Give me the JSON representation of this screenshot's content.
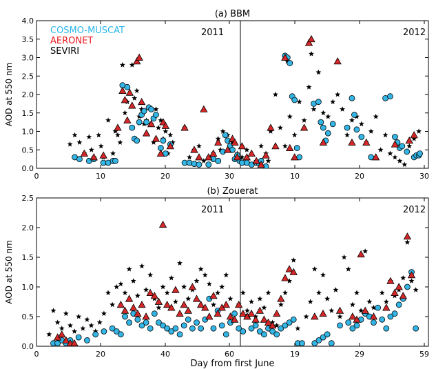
{
  "figure": {
    "xlabel": "Day from first June",
    "legend": [
      {
        "label": "COSMO-MUSCAT",
        "color": "#29b6e8"
      },
      {
        "label": "AERONET",
        "color": "#e8161b"
      },
      {
        "label": "SEVIRI",
        "color": "#000000"
      }
    ],
    "colors": {
      "model_fill": "#33b5e5",
      "aeronet_fill": "#d62728",
      "seviri_fill": "#000000"
    }
  },
  "chart_data": [
    {
      "type": "scatter",
      "title": "(a) BBM",
      "ylabel": "AOD at 550 nm",
      "ylim": [
        0,
        4.0
      ],
      "yticks": [
        "0.0",
        "0.5",
        "1.0",
        "1.5",
        "2.0",
        "2.5",
        "3.0",
        "3.5",
        "4.0"
      ],
      "xticks": [
        "0",
        "10",
        "20",
        "30",
        "10",
        "20",
        "30"
      ],
      "grid": false,
      "legend_position": "top-left",
      "year_labels": [
        "2011",
        "2012"
      ],
      "divider_after_day": 30,
      "x_axis": "continuous day index; 0-30 = June 2011, 30-60 = June 2012 (June days 0-30)",
      "series": [
        {
          "name": "COSMO-MUSCAT",
          "marker": "circle",
          "x": [
            8,
            9,
            11,
            12,
            14,
            15,
            16,
            16.5,
            18,
            19,
            20,
            20.5,
            21,
            21.5,
            22,
            22.5,
            23,
            23.5,
            24,
            24.5,
            25,
            26,
            26.5,
            27,
            28,
            31,
            32,
            33,
            34,
            36,
            37,
            38,
            38,
            39,
            39.5,
            40,
            40.5,
            41,
            41.5,
            42,
            42.5,
            43,
            44,
            45,
            46,
            46.5,
            47,
            48,
            52,
            52.5,
            53,
            53.5,
            54,
            54.5,
            55,
            58,
            59,
            59.5,
            60,
            60.5,
            61,
            62,
            65,
            66,
            66.5,
            67,
            68,
            70,
            73,
            74,
            75,
            75.5,
            76,
            76.5,
            77.5,
            79,
            79.5,
            80,
            80.2
          ],
          "y": [
            0.3,
            0.25,
            0.2,
            0.25,
            0.15,
            0.15,
            0.2,
            0.2,
            2.25,
            2.2,
            1.1,
            0.8,
            0.75,
            1.25,
            1.45,
            1.55,
            1.25,
            1.65,
            1.6,
            1.35,
            1.45,
            0.55,
            0.75,
            0.4,
            0.65,
            0.15,
            0.15,
            0.12,
            0.1,
            0.1,
            0.25,
            0.2,
            0.2,
            0.45,
            0.9,
            0.75,
            0.6,
            0.5,
            0.25,
            0.35,
            0.2,
            0.15,
            0.15,
            0.1,
            0.15,
            0.15,
            0.2,
            0.05,
            3.05,
            3.0,
            2.85,
            1.95,
            1.85,
            0.55,
            0.3,
            1.75,
            1.8,
            1.25,
            1.1,
            0.75,
            0.95,
            1.2,
            1.1,
            1.9,
            1.45,
            1.05,
            0.85,
            0.3,
            1.9,
            1.95,
            0.85,
            0.7,
            0.55,
            0.6,
            0.45,
            0.3,
            0.35,
            0.35,
            0.4
          ]
        },
        {
          "name": "AERONET",
          "marker": "triangle",
          "x": [
            10,
            12,
            14,
            17,
            18,
            18.5,
            19,
            19.5,
            20,
            21,
            21.5,
            22,
            23,
            24,
            25,
            26,
            26.5,
            27,
            28,
            31,
            33,
            34,
            35,
            36,
            37,
            38,
            40,
            41,
            41.5,
            42,
            43,
            44,
            45,
            46,
            47,
            48,
            49,
            50,
            52,
            53,
            54,
            56,
            57,
            57.5,
            60,
            63,
            66,
            69,
            71,
            75,
            78,
            79
          ],
          "y": [
            0.4,
            0.3,
            0.35,
            1.1,
            2.1,
            1.85,
            1.3,
            2.05,
            1.7,
            2.9,
            3.0,
            1.8,
            0.95,
            1.2,
            0.8,
            0.4,
            1.25,
            1.15,
            0.6,
            1.1,
            0.5,
            0.3,
            1.6,
            0.3,
            0.4,
            0.7,
            0.5,
            0.8,
            0.7,
            0.3,
            0.6,
            0.3,
            0.4,
            0.2,
            0.1,
            0.35,
            1.1,
            0.6,
            3.0,
            0.55,
            0.3,
            1.1,
            3.4,
            3.5,
            0.7,
            2.9,
            0.7,
            0.7,
            0.3,
            0.65,
            0.75,
            0.9
          ]
        },
        {
          "name": "SEVIRI",
          "marker": "star",
          "x": [
            7,
            8,
            9,
            10,
            11,
            11.5,
            12,
            13,
            13.5,
            14,
            15,
            16,
            16.5,
            17,
            17.5,
            18,
            18.5,
            19,
            20,
            20.5,
            21,
            21.5,
            22,
            22.5,
            23,
            24,
            24.5,
            25,
            25.5,
            26,
            26.5,
            27,
            27.5,
            28,
            28.5,
            31,
            32,
            33,
            34,
            35,
            36,
            37,
            38,
            38.5,
            39,
            40,
            40.5,
            41,
            42,
            43,
            44,
            45,
            46,
            47,
            48,
            48.5,
            49,
            50,
            51,
            52,
            52.5,
            53,
            54,
            55,
            56,
            57,
            57.5,
            58,
            59,
            60,
            61,
            62,
            63,
            64,
            65,
            66,
            67,
            68,
            69,
            70,
            71,
            72,
            73,
            74,
            75,
            76,
            77,
            78,
            79,
            80
          ],
          "y": [
            0.65,
            0.9,
            0.7,
            0.4,
            0.85,
            0.5,
            0.3,
            0.9,
            0.6,
            0.3,
            1.3,
            0.4,
            1.0,
            0.9,
            0.7,
            2.8,
            1.5,
            1.8,
            2.8,
            1.9,
            2.1,
            1.4,
            1.6,
            1.2,
            1.3,
            1.2,
            0.7,
            1.6,
            1.1,
            1.3,
            0.8,
            1.0,
            0.4,
            0.9,
            0.7,
            1.1,
            0.3,
            0.5,
            0.6,
            0.2,
            0.3,
            0.4,
            0.8,
            0.5,
            1.0,
            0.9,
            0.6,
            0.7,
            0.4,
            0.3,
            0.5,
            0.1,
            0.2,
            0.6,
            0.4,
            0.2,
            1.0,
            2.0,
            1.1,
            0.6,
            2.9,
            1.4,
            0.9,
            1.8,
            1.3,
            2.2,
            3.1,
            1.6,
            2.6,
            1.5,
            1.4,
            1.8,
            2.0,
            1.6,
            0.9,
            1.3,
            1.4,
            1.2,
            0.7,
            1.0,
            1.4,
            0.5,
            0.9,
            0.4,
            0.3,
            0.2,
            0.1,
            0.6,
            0.8,
            1.0
          ]
        }
      ]
    },
    {
      "type": "scatter",
      "title": "(b) Zouerat",
      "ylabel": "AOD at 550 nm",
      "ylim": [
        0,
        2.5
      ],
      "yticks": [
        "0.0",
        "0.5",
        "1.0",
        "1.5",
        "2.0",
        "2.5"
      ],
      "xticks": [
        "0",
        "20",
        "40",
        "60",
        "19",
        "29",
        "59"
      ],
      "grid": false,
      "year_labels": [
        "2011",
        "2012"
      ],
      "x_axis": "continuous day index; 0-61 = 2011, 61-90 = 2012",
      "series": [
        {
          "name": "COSMO-MUSCAT",
          "marker": "circle",
          "x": [
            4,
            5,
            6,
            7,
            8,
            10,
            12,
            14,
            16,
            18,
            19,
            20,
            21,
            22,
            23,
            24,
            25,
            26,
            27,
            28,
            29,
            30,
            31,
            32,
            33,
            34,
            35,
            36,
            37,
            38,
            39,
            40,
            41,
            42,
            43,
            44,
            45,
            46,
            47,
            48,
            49,
            50,
            51,
            52,
            53,
            54,
            55,
            56,
            57,
            58,
            59,
            60,
            61,
            62,
            63,
            66,
            67,
            68,
            69,
            70,
            72,
            74,
            75,
            76,
            77,
            78,
            79,
            80,
            81,
            82,
            83,
            84,
            85,
            86,
            87,
            88,
            89,
            90
          ],
          "y": [
            0.05,
            0.05,
            0.1,
            0.05,
            0.1,
            0.15,
            0.1,
            0.2,
            0.25,
            0.3,
            0.25,
            0.2,
            0.5,
            0.4,
            0.55,
            0.45,
            0.35,
            0.4,
            0.3,
            0.55,
            0.4,
            0.35,
            0.3,
            0.25,
            0.3,
            0.2,
            0.35,
            0.45,
            0.3,
            0.4,
            0.3,
            0.45,
            0.8,
            0.3,
            0.6,
            0.35,
            0.2,
            0.4,
            0.55,
            0.3,
            0.25,
            0.5,
            0.3,
            0.35,
            0.25,
            0.2,
            0.3,
            0.25,
            0.2,
            0.3,
            0.35,
            0.4,
            0.45,
            0.05,
            0.05,
            0.05,
            0.1,
            0.15,
            0.2,
            0.05,
            0.35,
            0.4,
            0.3,
            0.35,
            0.45,
            0.55,
            0.5,
            0.4,
            0.65,
            0.45,
            0.3,
            0.5,
            0.55,
            0.7,
            0.8,
            1.0,
            1.25,
            0.3
          ]
        },
        {
          "name": "AERONET",
          "marker": "triangle",
          "x": [
            5,
            6,
            7,
            8,
            9,
            20,
            21,
            22,
            23,
            24,
            25,
            26,
            27,
            28,
            29,
            30,
            31,
            32,
            33,
            34,
            35,
            36,
            37,
            38,
            39,
            40,
            41,
            42,
            43,
            44,
            45,
            46,
            47,
            48,
            49,
            50,
            51,
            52,
            53,
            54,
            55,
            56,
            57,
            58,
            59,
            60,
            61,
            66,
            68,
            72,
            75,
            76,
            77,
            78,
            80,
            83,
            84,
            85,
            86,
            87,
            88,
            89
          ],
          "y": [
            0.15,
            0.2,
            0.1,
            0.05,
            0.05,
            0.7,
            0.6,
            0.8,
            0.65,
            0.55,
            0.7,
            0.5,
            0.9,
            0.85,
            0.75,
            2.05,
            0.7,
            0.65,
            0.95,
            0.55,
            0.7,
            0.6,
            1.0,
            0.8,
            0.7,
            0.65,
            0.5,
            0.85,
            0.55,
            0.65,
            0.7,
            0.5,
            0.45,
            0.7,
            0.55,
            0.5,
            0.55,
            0.45,
            0.6,
            0.45,
            0.4,
            0.35,
            0.55,
            0.8,
            1.15,
            1.3,
            1.25,
            0.5,
            0.55,
            0.6,
            0.5,
            0.45,
            1.55,
            0.6,
            0.5,
            0.65,
            1.1,
            0.9,
            1.0,
            0.85,
            1.85,
            1.2
          ]
        },
        {
          "name": "SEVIRI",
          "marker": "star",
          "x": [
            3,
            4,
            5,
            6,
            7,
            8,
            9,
            10,
            11,
            12,
            13,
            14,
            15,
            16,
            17,
            18,
            19,
            20,
            21,
            22,
            23,
            24,
            25,
            26,
            27,
            28,
            29,
            30,
            31,
            32,
            33,
            34,
            35,
            36,
            37,
            38,
            39,
            40,
            41,
            42,
            43,
            44,
            45,
            46,
            47,
            48,
            49,
            50,
            51,
            52,
            53,
            54,
            55,
            56,
            57,
            58,
            59,
            60,
            61,
            62,
            64,
            65,
            66,
            67,
            68,
            69,
            70,
            71,
            72,
            73,
            74,
            75,
            76,
            77,
            78,
            79,
            80,
            82,
            83,
            84,
            85,
            86,
            87,
            88,
            89,
            90
          ],
          "y": [
            0.2,
            0.6,
            0.4,
            0.3,
            0.55,
            0.35,
            0.25,
            0.5,
            0.3,
            0.45,
            0.35,
            0.25,
            0.4,
            0.55,
            0.9,
            0.7,
            1.0,
            1.05,
            0.9,
            1.3,
            1.1,
            0.85,
            1.35,
            0.95,
            1.2,
            0.8,
            0.65,
            1.0,
            0.9,
            1.15,
            0.75,
            1.4,
            1.0,
            0.8,
            0.95,
            1.1,
            1.3,
            1.2,
            1.05,
            0.7,
            0.9,
            1.0,
            1.2,
            0.8,
            0.55,
            0.7,
            0.9,
            0.6,
            0.75,
            0.5,
            0.8,
            0.65,
            0.9,
            0.4,
            0.35,
            0.7,
            0.9,
            1.1,
            1.45,
            0.3,
            0.5,
            0.75,
            1.3,
            0.9,
            1.2,
            0.8,
            0.6,
            0.95,
            0.5,
            1.5,
            1.3,
            0.7,
            0.9,
            0.6,
            1.6,
            0.75,
            0.65,
            0.9,
            0.75,
            1.1,
            0.85,
            0.95,
            1.15,
            1.75,
            1.1,
            0.95
          ]
        }
      ]
    }
  ]
}
